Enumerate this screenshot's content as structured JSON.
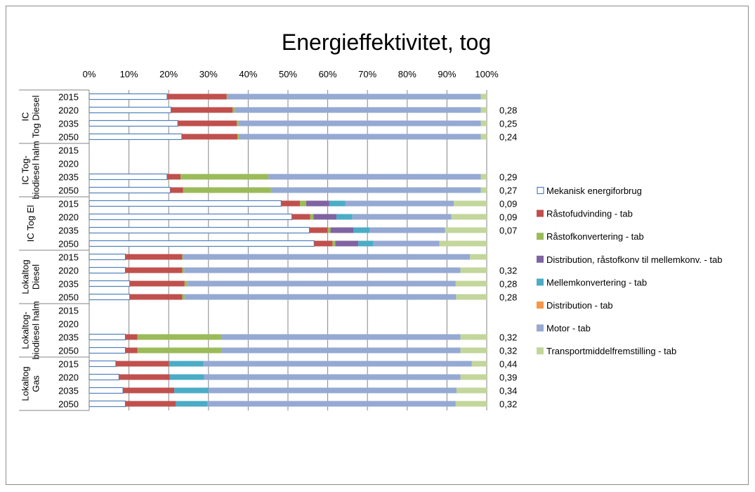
{
  "chart_data": {
    "type": "bar",
    "orientation": "horizontal",
    "stacked": "100%",
    "title": "Energieffektivitet, tog",
    "xlim": [
      0,
      100
    ],
    "x_ticks": [
      "0%",
      "10%",
      "20%",
      "30%",
      "40%",
      "50%",
      "60%",
      "70%",
      "80%",
      "90%",
      "100%"
    ],
    "grid": true,
    "legend_position": "right",
    "series": [
      {
        "name": "Mekanisk energiforbrug",
        "color": "#ffffff",
        "stroke": "#4f81bd"
      },
      {
        "name": "Råstofudvinding - tab",
        "color": "#c0504d"
      },
      {
        "name": "Råstofkonvertering - tab",
        "color": "#9bbb59"
      },
      {
        "name": "Distribution, råstofkonv  til mellemkonv. - tab",
        "color": "#8064a2"
      },
      {
        "name": "Mellemkonvertering - tab",
        "color": "#4bacc6"
      },
      {
        "name": "Distribution - tab",
        "color": "#f79646"
      },
      {
        "name": "Motor - tab",
        "color": "#95a9d3"
      },
      {
        "name": "Transportmiddelfremstilling - tab",
        "color": "#c3d69b"
      }
    ],
    "groups": [
      {
        "name": "IC Tog Diesel",
        "rows": [
          {
            "year": "2015",
            "segments": [
              19.6,
              15.0,
              0.3,
              0,
              0,
              0,
              63.6,
              1.5
            ],
            "label": ""
          },
          {
            "year": "2020",
            "segments": [
              20.6,
              15.5,
              0.5,
              0,
              0,
              0,
              61.9,
              1.5
            ],
            "label": "0,28"
          },
          {
            "year": "2035",
            "segments": [
              22.3,
              14.8,
              0.5,
              0,
              0,
              0,
              60.9,
              1.5
            ],
            "label": "0,25"
          },
          {
            "year": "2050",
            "segments": [
              23.3,
              14.0,
              0.5,
              0,
              0,
              0,
              60.7,
              1.5
            ],
            "label": "0,24"
          }
        ]
      },
      {
        "name": "IC Tog-biodiesel halm",
        "rows": [
          {
            "year": "2015",
            "segments": null,
            "label": ""
          },
          {
            "year": "2020",
            "segments": null,
            "label": ""
          },
          {
            "year": "2035",
            "segments": [
              19.6,
              3.4,
              22.1,
              0,
              0,
              0,
              53.4,
              1.5
            ],
            "label": "0,29"
          },
          {
            "year": "2050",
            "segments": [
              20.4,
              3.2,
              22.1,
              0,
              0,
              0,
              52.8,
              1.5
            ],
            "label": "0,27"
          }
        ]
      },
      {
        "name": "IC Tog El",
        "rows": [
          {
            "year": "2015",
            "segments": [
              48.3,
              4.7,
              1.6,
              5.8,
              4.0,
              0,
              27.3,
              8.3
            ],
            "label": "0,09"
          },
          {
            "year": "2020",
            "segments": [
              51.0,
              4.6,
              0.8,
              5.8,
              4.0,
              0,
              24.9,
              8.9
            ],
            "label": "0,09"
          },
          {
            "year": "2035",
            "segments": [
              55.4,
              4.6,
              0.7,
              5.8,
              4.0,
              0,
              19.0,
              10.5
            ],
            "label": "0,07"
          },
          {
            "year": "2050",
            "segments": [
              56.6,
              4.6,
              0.7,
              5.8,
              3.8,
              0,
              16.6,
              11.9
            ],
            "label": ""
          }
        ]
      },
      {
        "name": "Lokaltog Diesel",
        "rows": [
          {
            "year": "2015",
            "segments": [
              9.1,
              14.3,
              0.2,
              0,
              0,
              0,
              72.2,
              4.2
            ],
            "label": ""
          },
          {
            "year": "2020",
            "segments": [
              9.1,
              14.3,
              0.5,
              0,
              0,
              0,
              69.5,
              6.6
            ],
            "label": "0,32"
          },
          {
            "year": "2035",
            "segments": [
              10.2,
              13.8,
              0.6,
              0,
              0,
              0,
              67.6,
              7.8
            ],
            "label": "0,28"
          },
          {
            "year": "2050",
            "segments": [
              10.2,
              13.2,
              0.6,
              0,
              0,
              0,
              68.3,
              7.7
            ],
            "label": "0,28"
          }
        ]
      },
      {
        "name": "Lokaltog-biodiesel halm",
        "rows": [
          {
            "year": "2015",
            "segments": null,
            "label": ""
          },
          {
            "year": "2020",
            "segments": null,
            "label": ""
          },
          {
            "year": "2035",
            "segments": [
              9.1,
              3.0,
              21.1,
              0,
              0,
              0,
              60.2,
              6.6
            ],
            "label": "0,32"
          },
          {
            "year": "2050",
            "segments": [
              9.1,
              3.0,
              21.1,
              0,
              0,
              0,
              60.2,
              6.6
            ],
            "label": "0,32"
          }
        ]
      },
      {
        "name": "Lokaltog Gas",
        "rows": [
          {
            "year": "2015",
            "segments": [
              6.7,
              13.4,
              0,
              0,
              8.6,
              0,
              67.5,
              3.8
            ],
            "label": "0,44"
          },
          {
            "year": "2020",
            "segments": [
              7.5,
              12.8,
              0,
              0,
              8.6,
              0,
              64.5,
              6.6
            ],
            "label": "0,39"
          },
          {
            "year": "2035",
            "segments": [
              8.5,
              12.9,
              0,
              0,
              8.6,
              0,
              62.4,
              7.6
            ],
            "label": "0,34"
          },
          {
            "year": "2050",
            "segments": [
              9.1,
              12.7,
              0,
              0,
              8.0,
              0,
              62.4,
              7.8
            ],
            "label": "0,32"
          }
        ]
      }
    ]
  }
}
